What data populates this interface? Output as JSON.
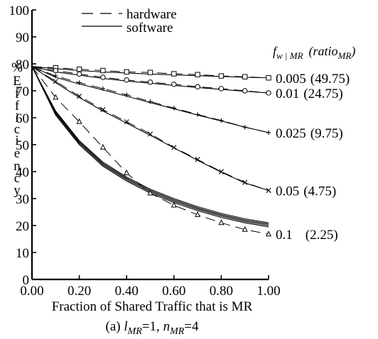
{
  "chart_data": {
    "type": "line",
    "x": [
      0.0,
      0.1,
      0.2,
      0.3,
      0.4,
      0.5,
      0.6,
      0.7,
      0.8,
      0.9,
      1.0
    ],
    "xlim": [
      0.0,
      1.0
    ],
    "ylim": [
      0,
      100
    ],
    "x_ticks": [
      0.0,
      0.2,
      0.4,
      0.6,
      0.8,
      1.0
    ],
    "x_tick_labels": [
      "0.00",
      "0.20",
      "0.40",
      "0.60",
      "0.80",
      "1.00"
    ],
    "y_ticks": [
      0,
      10,
      20,
      30,
      40,
      50,
      60,
      70,
      80,
      90,
      100
    ],
    "y_tick_labels": [
      "0",
      "10",
      "20",
      "30",
      "40",
      "50",
      "60",
      "70",
      "80",
      "90",
      "100"
    ],
    "xlabel": "Fraction of Shared Traffic that is MR",
    "ylabel": "% Efficiency",
    "ylabel_chars": [
      "%",
      "E",
      "f",
      "f",
      "i",
      "c",
      "i",
      "e",
      "n",
      "c",
      "y"
    ],
    "caption": {
      "prefix": "(a) ",
      "l_var": "l",
      "l_sub": "MR",
      "l_val": "=1, ",
      "n_var": "n",
      "n_sub": "MR",
      "n_val": "=4"
    },
    "legend": {
      "position": "top-left",
      "entries": [
        {
          "label": "hardware",
          "style": "dashed"
        },
        {
          "label": "software",
          "style": "solid"
        }
      ]
    },
    "series_header": {
      "f": "f",
      "f_sub": "w | MR",
      "ratio": "(ratio",
      "ratio_sub": "MR",
      "close": ")"
    },
    "series": [
      {
        "f_label": "0.005",
        "ratio_label": "(49.75)",
        "marker": "square",
        "hardware": [
          79,
          78.5,
          78,
          77.5,
          77,
          76.8,
          76.3,
          76,
          75.5,
          75.2,
          74.8
        ],
        "software": [
          79,
          78.2,
          77.5,
          77,
          76.6,
          76.2,
          75.9,
          75.6,
          75.3,
          75,
          74.8
        ]
      },
      {
        "f_label": "0.01",
        "ratio_label": "(24.75)",
        "marker": "circle",
        "hardware": [
          79,
          77.5,
          76.2,
          75,
          74,
          73.2,
          72.4,
          71.5,
          70.8,
          70,
          69.2
        ],
        "software": [
          79,
          77,
          75.8,
          74.6,
          73.6,
          72.8,
          72,
          71.2,
          70.5,
          69.8,
          69.2
        ]
      },
      {
        "f_label": "0.025",
        "ratio_label": "(9.75)",
        "marker": "plus",
        "hardware": [
          79,
          75.5,
          73,
          70.8,
          68.5,
          66,
          63.6,
          61.2,
          59,
          56.5,
          54.5
        ],
        "software": [
          79,
          75,
          72.5,
          70.3,
          68,
          65.6,
          63.3,
          61,
          58.8,
          56.5,
          54.5
        ]
      },
      {
        "f_label": "0.05",
        "ratio_label": "(4.75)",
        "marker": "cross",
        "hardware": [
          79,
          73.5,
          68,
          63,
          58.5,
          54,
          49,
          44.5,
          40,
          36,
          33
        ],
        "software": [
          79,
          73,
          67.5,
          62.5,
          58,
          53.5,
          48.8,
          44.2,
          39.8,
          35.8,
          33
        ]
      },
      {
        "f_label": "0.1",
        "ratio_label": "(2.25)",
        "marker": "triangle",
        "hardware": [
          79,
          67.5,
          58.5,
          49,
          39.5,
          32,
          27.5,
          24,
          21,
          18.5,
          16.8
        ],
        "software": [
          79,
          62,
          51,
          43,
          37.5,
          33,
          29.5,
          26.5,
          24,
          22,
          20.5
        ]
      }
    ],
    "software_cluster": [
      [
        79,
        62,
        51,
        43,
        37.5,
        33,
        29.5,
        26.5,
        24,
        22,
        20.5
      ],
      [
        79,
        61.5,
        50.5,
        42.5,
        37,
        32.5,
        29,
        26,
        23.5,
        21.5,
        20
      ],
      [
        79,
        61,
        50,
        42,
        36.5,
        32,
        28.5,
        25.5,
        23,
        21,
        19.5
      ],
      [
        79,
        62.5,
        51.5,
        43.5,
        38,
        33.5,
        30,
        27,
        24.5,
        22.5,
        21
      ]
    ]
  }
}
